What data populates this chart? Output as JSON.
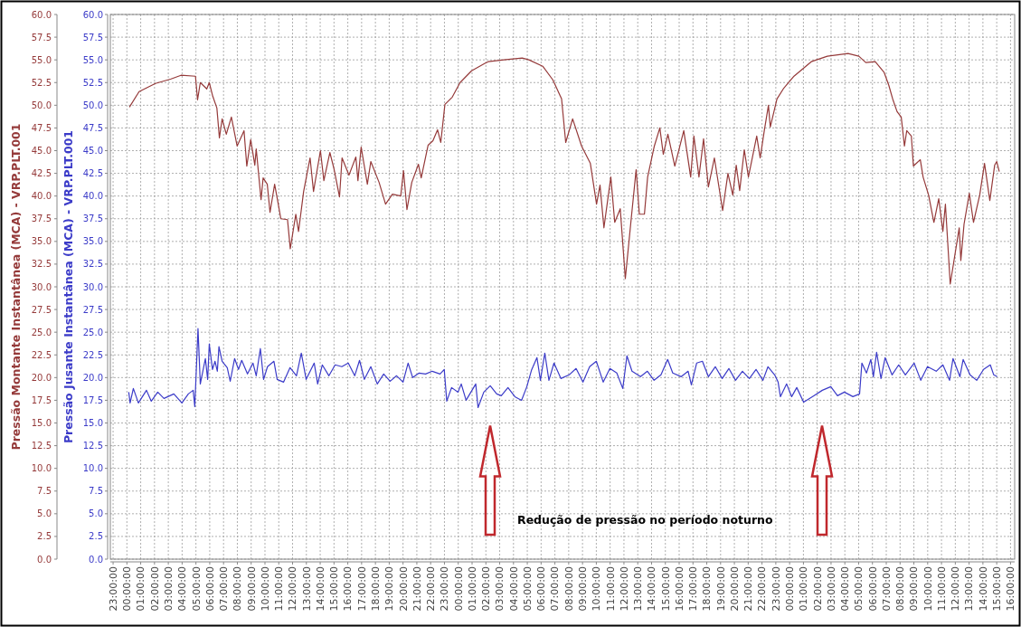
{
  "chart_data": {
    "type": "line",
    "ylabel": "Pressão Montante Instantânea (MCA) - VRP.PLT.001",
    "y2label": "Pressão Jusante Instantânea (MCA) - VRP.PLT.001",
    "annotations": [
      "Redução de pressão no período noturno"
    ],
    "xlim": [
      "2000-01-01T22:48",
      "2000-01-04T16:18"
    ],
    "ylim": [
      0,
      60
    ],
    "y2lim": [
      0,
      60
    ],
    "grid": true,
    "marker": "none",
    "line_style": "solid",
    "xticks": [
      {
        "value": "2000-01-01T23:00",
        "label": "23:00:00"
      },
      {
        "value": "2000-01-02T00:00",
        "label": "00:00:00"
      },
      {
        "value": "2000-01-02T01:00",
        "label": "01:00:00"
      },
      {
        "value": "2000-01-02T02:00",
        "label": "02:00:00"
      },
      {
        "value": "2000-01-02T03:00",
        "label": "03:00:00"
      },
      {
        "value": "2000-01-02T04:00",
        "label": "04:00:00"
      },
      {
        "value": "2000-01-02T05:00",
        "label": "05:00:00"
      },
      {
        "value": "2000-01-02T06:00",
        "label": "06:00:00"
      },
      {
        "value": "2000-01-02T07:00",
        "label": "07:00:00"
      },
      {
        "value": "2000-01-02T08:00",
        "label": "08:00:00"
      },
      {
        "value": "2000-01-02T09:00",
        "label": "09:00:00"
      },
      {
        "value": "2000-01-02T10:00",
        "label": "10:00:00"
      },
      {
        "value": "2000-01-02T11:00",
        "label": "11:00:00"
      },
      {
        "value": "2000-01-02T12:00",
        "label": "12:00:00"
      },
      {
        "value": "2000-01-02T13:00",
        "label": "13:00:00"
      },
      {
        "value": "2000-01-02T14:00",
        "label": "14:00:00"
      },
      {
        "value": "2000-01-02T15:00",
        "label": "15:00:00"
      },
      {
        "value": "2000-01-02T16:00",
        "label": "16:00:00"
      },
      {
        "value": "2000-01-02T17:00",
        "label": "17:00:00"
      },
      {
        "value": "2000-01-02T18:00",
        "label": "18:00:00"
      },
      {
        "value": "2000-01-02T19:00",
        "label": "19:00:00"
      },
      {
        "value": "2000-01-02T20:00",
        "label": "20:00:00"
      },
      {
        "value": "2000-01-02T21:00",
        "label": "21:00:00"
      },
      {
        "value": "2000-01-02T22:00",
        "label": "22:00:00"
      },
      {
        "value": "2000-01-02T23:00",
        "label": "23:00:00"
      },
      {
        "value": "2000-01-03T00:00",
        "label": "00:00:00"
      },
      {
        "value": "2000-01-03T01:00",
        "label": "01:00:00"
      },
      {
        "value": "2000-01-03T02:00",
        "label": "02:00:00"
      },
      {
        "value": "2000-01-03T03:00",
        "label": "03:00:00"
      },
      {
        "value": "2000-01-03T04:00",
        "label": "04:00:00"
      },
      {
        "value": "2000-01-03T05:00",
        "label": "05:00:00"
      },
      {
        "value": "2000-01-03T06:00",
        "label": "06:00:00"
      },
      {
        "value": "2000-01-03T07:00",
        "label": "07:00:00"
      },
      {
        "value": "2000-01-03T08:00",
        "label": "08:00:00"
      },
      {
        "value": "2000-01-03T09:00",
        "label": "09:00:00"
      },
      {
        "value": "2000-01-03T10:00",
        "label": "10:00:00"
      },
      {
        "value": "2000-01-03T11:00",
        "label": "11:00:00"
      },
      {
        "value": "2000-01-03T12:00",
        "label": "12:00:00"
      },
      {
        "value": "2000-01-03T13:00",
        "label": "13:00:00"
      },
      {
        "value": "2000-01-03T14:00",
        "label": "14:00:00"
      },
      {
        "value": "2000-01-03T15:00",
        "label": "15:00:00"
      },
      {
        "value": "2000-01-03T16:00",
        "label": "16:00:00"
      },
      {
        "value": "2000-01-03T17:00",
        "label": "17:00:00"
      },
      {
        "value": "2000-01-03T18:00",
        "label": "18:00:00"
      },
      {
        "value": "2000-01-03T19:00",
        "label": "19:00:00"
      },
      {
        "value": "2000-01-03T20:00",
        "label": "20:00:00"
      },
      {
        "value": "2000-01-03T21:00",
        "label": "21:00:00"
      },
      {
        "value": "2000-01-03T22:00",
        "label": "22:00:00"
      },
      {
        "value": "2000-01-03T23:00",
        "label": "23:00:00"
      },
      {
        "value": "2000-01-04T00:00",
        "label": "00:00:00"
      },
      {
        "value": "2000-01-04T01:00",
        "label": "01:00:00"
      },
      {
        "value": "2000-01-04T02:00",
        "label": "02:00:00"
      },
      {
        "value": "2000-01-04T03:00",
        "label": "03:00:00"
      },
      {
        "value": "2000-01-04T04:00",
        "label": "04:00:00"
      },
      {
        "value": "2000-01-04T05:00",
        "label": "05:00:00"
      },
      {
        "value": "2000-01-04T06:00",
        "label": "06:00:00"
      },
      {
        "value": "2000-01-04T07:00",
        "label": "07:00:00"
      },
      {
        "value": "2000-01-04T08:00",
        "label": "08:00:00"
      },
      {
        "value": "2000-01-04T09:00",
        "label": "09:00:00"
      },
      {
        "value": "2000-01-04T10:00",
        "label": "10:00:00"
      },
      {
        "value": "2000-01-04T11:00",
        "label": "11:00:00"
      },
      {
        "value": "2000-01-04T12:00",
        "label": "12:00:00"
      },
      {
        "value": "2000-01-04T13:00",
        "label": "13:00:00"
      },
      {
        "value": "2000-01-04T14:00",
        "label": "14:00:00"
      },
      {
        "value": "2000-01-04T15:00",
        "label": "15:00:00"
      },
      {
        "value": "2000-01-04T16:00",
        "label": "16:00:00"
      }
    ],
    "yticks": [
      {
        "value": 0,
        "label": "0.0"
      },
      {
        "value": 2.5,
        "label": "2.5"
      },
      {
        "value": 5,
        "label": "5.0"
      },
      {
        "value": 7.5,
        "label": "7.5"
      },
      {
        "value": 10,
        "label": "10.0"
      },
      {
        "value": 12.5,
        "label": "12.5"
      },
      {
        "value": 15,
        "label": "15.0"
      },
      {
        "value": 17.5,
        "label": "17.5"
      },
      {
        "value": 20,
        "label": "20.0"
      },
      {
        "value": 22.5,
        "label": "22.5"
      },
      {
        "value": 25,
        "label": "25.0"
      },
      {
        "value": 27.5,
        "label": "27.5"
      },
      {
        "value": 30,
        "label": "30.0"
      },
      {
        "value": 32.5,
        "label": "32.5"
      },
      {
        "value": 35,
        "label": "35.0"
      },
      {
        "value": 37.5,
        "label": "37.5"
      },
      {
        "value": 40,
        "label": "40.0"
      },
      {
        "value": 42.5,
        "label": "42.5"
      },
      {
        "value": 45,
        "label": "45.0"
      },
      {
        "value": 47.5,
        "label": "47.5"
      },
      {
        "value": 50,
        "label": "50.0"
      },
      {
        "value": 52.5,
        "label": "52.5"
      },
      {
        "value": 55,
        "label": "55.0"
      },
      {
        "value": 57.5,
        "label": "57.5"
      },
      {
        "value": 60,
        "label": "60.0"
      }
    ],
    "y2ticks": [
      {
        "value": 0,
        "label": "0.0"
      },
      {
        "value": 2.5,
        "label": "2.5"
      },
      {
        "value": 5,
        "label": "5.0"
      },
      {
        "value": 7.5,
        "label": "7.5"
      },
      {
        "value": 10,
        "label": "10.0"
      },
      {
        "value": 12.5,
        "label": "12.5"
      },
      {
        "value": 15,
        "label": "15.0"
      },
      {
        "value": 17.5,
        "label": "17.5"
      },
      {
        "value": 20,
        "label": "20.0"
      },
      {
        "value": 22.5,
        "label": "22.5"
      },
      {
        "value": 25,
        "label": "25.0"
      },
      {
        "value": 27.5,
        "label": "27.5"
      },
      {
        "value": 30,
        "label": "30.0"
      },
      {
        "value": 32.5,
        "label": "32.5"
      },
      {
        "value": 35,
        "label": "35.0"
      },
      {
        "value": 37.5,
        "label": "37.5"
      },
      {
        "value": 40,
        "label": "40.0"
      },
      {
        "value": 42.5,
        "label": "42.5"
      },
      {
        "value": 45,
        "label": "45.0"
      },
      {
        "value": 47.5,
        "label": "47.5"
      },
      {
        "value": 50,
        "label": "50.0"
      },
      {
        "value": 52.5,
        "label": "52.5"
      },
      {
        "value": 55,
        "label": "55.0"
      },
      {
        "value": 57.5,
        "label": "57.5"
      },
      {
        "value": 60,
        "label": "60.0"
      }
    ],
    "series": [
      {
        "color": "#953a3a",
        "axis": "y",
        "x": [
          "2000-01-02T00:11",
          "2000-01-02T00:53",
          "2000-01-02T02:04",
          "2000-01-02T03:12",
          "2000-01-02T03:55",
          "2000-01-02T04:58",
          "2000-01-02T05:07",
          "2000-01-02T05:19",
          "2000-01-02T05:47",
          "2000-01-02T05:58",
          "2000-01-02T06:13",
          "2000-01-02T06:31",
          "2000-01-02T06:42",
          "2000-01-02T06:54",
          "2000-01-02T07:12",
          "2000-01-02T07:34",
          "2000-01-02T07:59",
          "2000-01-02T08:29",
          "2000-01-02T08:41",
          "2000-01-02T08:58",
          "2000-01-02T09:16",
          "2000-01-02T09:22",
          "2000-01-02T09:43",
          "2000-01-02T09:52",
          "2000-01-02T10:10",
          "2000-01-02T10:22",
          "2000-01-02T10:42",
          "2000-01-02T10:55",
          "2000-01-02T11:09",
          "2000-01-02T11:38",
          "2000-01-02T11:50",
          "2000-01-02T12:14",
          "2000-01-02T12:26",
          "2000-01-02T12:48",
          "2000-01-02T13:16",
          "2000-01-02T13:31",
          "2000-01-02T14:01",
          "2000-01-02T14:16",
          "2000-01-02T14:42",
          "2000-01-02T15:00",
          "2000-01-02T15:24",
          "2000-01-02T15:35",
          "2000-01-02T16:05",
          "2000-01-02T16:35",
          "2000-01-02T16:44",
          "2000-01-02T16:58",
          "2000-01-02T17:25",
          "2000-01-02T17:40",
          "2000-01-02T18:16",
          "2000-01-02T18:44",
          "2000-01-02T19:14",
          "2000-01-02T19:50",
          "2000-01-02T20:02",
          "2000-01-02T20:17",
          "2000-01-02T20:38",
          "2000-01-02T21:07",
          "2000-01-02T21:19",
          "2000-01-02T21:49",
          "2000-01-02T22:10",
          "2000-01-02T22:30",
          "2000-01-02T22:44",
          "2000-01-02T23:02",
          "2000-01-02T23:34",
          "2000-01-03T00:08",
          "2000-01-03T00:58",
          "2000-01-03T01:54",
          "2000-01-03T02:10",
          "2000-01-03T03:18",
          "2000-01-03T04:38",
          "2000-01-03T05:07",
          "2000-01-03T06:07",
          "2000-01-03T06:51",
          "2000-01-03T07:29",
          "2000-01-03T07:47",
          "2000-01-03T08:17",
          "2000-01-03T08:56",
          "2000-01-03T09:34",
          "2000-01-03T10:01",
          "2000-01-03T10:16",
          "2000-01-03T10:33",
          "2000-01-03T11:03",
          "2000-01-03T11:20",
          "2000-01-03T11:44",
          "2000-01-03T12:06",
          "2000-01-03T12:32",
          "2000-01-03T12:53",
          "2000-01-03T13:07",
          "2000-01-03T13:29",
          "2000-01-03T13:43",
          "2000-01-03T14:12",
          "2000-01-03T14:36",
          "2000-01-03T14:51",
          "2000-01-03T15:11",
          "2000-01-03T15:41",
          "2000-01-03T16:20",
          "2000-01-03T16:50",
          "2000-01-03T17:04",
          "2000-01-03T17:26",
          "2000-01-03T17:46",
          "2000-01-03T18:07",
          "2000-01-03T18:33",
          "2000-01-03T19:09",
          "2000-01-03T19:32",
          "2000-01-03T19:53",
          "2000-01-03T20:08",
          "2000-01-03T20:23",
          "2000-01-03T20:43",
          "2000-01-03T21:01",
          "2000-01-03T21:37",
          "2000-01-03T21:52",
          "2000-01-03T22:10",
          "2000-01-03T22:28",
          "2000-01-03T22:36",
          "2000-01-03T23:05",
          "2000-01-03T23:35",
          "2000-01-04T00:19",
          "2000-01-04T01:34",
          "2000-01-04T02:44",
          "2000-01-04T04:14",
          "2000-01-04T05:01",
          "2000-01-04T05:31",
          "2000-01-04T06:12",
          "2000-01-04T06:51",
          "2000-01-04T07:11",
          "2000-01-04T07:29",
          "2000-01-04T07:47",
          "2000-01-04T08:05",
          "2000-01-04T08:19",
          "2000-01-04T08:29",
          "2000-01-04T08:49",
          "2000-01-04T08:58",
          "2000-01-04T09:28",
          "2000-01-04T09:40",
          "2000-01-04T10:04",
          "2000-01-04T10:27",
          "2000-01-04T10:48",
          "2000-01-04T11:06",
          "2000-01-04T11:17",
          "2000-01-04T11:38",
          "2000-01-04T12:17",
          "2000-01-04T12:24",
          "2000-01-04T12:38",
          "2000-01-04T13:01",
          "2000-01-04T13:19",
          "2000-01-04T13:46",
          "2000-01-04T14:07",
          "2000-01-04T14:30",
          "2000-01-04T14:51",
          "2000-01-04T15:00",
          "2000-01-04T15:11"
        ],
        "values": [
          49.8,
          51.5,
          52.4,
          52.9,
          53.3,
          53.2,
          50.6,
          52.5,
          51.8,
          52.5,
          51,
          49.7,
          46.4,
          48.5,
          46.8,
          48.7,
          45.5,
          47.2,
          43.3,
          46.2,
          43.4,
          45.2,
          39.6,
          42.0,
          41.3,
          38.2,
          41.3,
          39.5,
          37.5,
          37.4,
          34.2,
          38.0,
          36.1,
          40.5,
          44.2,
          40.5,
          45.0,
          41.7,
          44.8,
          43,
          39.9,
          44.2,
          42.3,
          44.3,
          41.7,
          45.4,
          41.3,
          43.8,
          41.5,
          39.1,
          40.2,
          40.0,
          42.8,
          38.5,
          41.5,
          43.5,
          42.0,
          45.6,
          46.1,
          47.3,
          45.9,
          50.1,
          50.9,
          52.5,
          53.8,
          54.6,
          54.8,
          55.0,
          55.2,
          55.0,
          54.3,
          52.8,
          50.7,
          45.9,
          48.5,
          45.5,
          43.6,
          39.1,
          41.2,
          36.5,
          42.1,
          37.1,
          38.6,
          30.9,
          37.6,
          42.9,
          38.0,
          38.0,
          42.1,
          45.5,
          47.5,
          44.6,
          46.8,
          43.3,
          47.2,
          42.1,
          46.6,
          42.1,
          46.3,
          41.0,
          44.2,
          38.4,
          42.5,
          40.1,
          43.4,
          40.6,
          45.1,
          42.1,
          46.6,
          44.2,
          47.2,
          50.0,
          47.6,
          50.7,
          51.9,
          53.2,
          54.8,
          55.4,
          55.7,
          55.4,
          54.7,
          54.8,
          53.6,
          52.2,
          50.6,
          49.3,
          48.7,
          45.5,
          47.2,
          46.6,
          43.3,
          44.0,
          42.1,
          40.1,
          37.1,
          39.7,
          36.1,
          39.1,
          30.3,
          36.5,
          32.9,
          36.9,
          40.3,
          37.1,
          40.1,
          43.6,
          39.5,
          43.4,
          43.8,
          42.7
        ]
      },
      {
        "color": "#3b3bc8",
        "axis": "y2",
        "x": [
          "2000-01-02T00:08",
          "2000-01-02T00:14",
          "2000-01-02T00:28",
          "2000-01-02T00:50",
          "2000-01-02T01:25",
          "2000-01-02T01:46",
          "2000-01-02T02:14",
          "2000-01-02T02:41",
          "2000-01-02T03:24",
          "2000-01-02T03:59",
          "2000-01-02T04:27",
          "2000-01-02T04:48",
          "2000-01-02T04:55",
          "2000-01-02T05:09",
          "2000-01-02T05:19",
          "2000-01-02T05:41",
          "2000-01-02T05:51",
          "2000-01-02T05:58",
          "2000-01-02T06:12",
          "2000-01-02T06:23",
          "2000-01-02T06:33",
          "2000-01-02T06:40",
          "2000-01-02T06:54",
          "2000-01-02T07:16",
          "2000-01-02T07:29",
          "2000-01-02T07:48",
          "2000-01-02T08:05",
          "2000-01-02T08:19",
          "2000-01-02T08:44",
          "2000-01-02T09:08",
          "2000-01-02T09:22",
          "2000-01-02T09:40",
          "2000-01-02T09:54",
          "2000-01-02T10:11",
          "2000-01-02T10:39",
          "2000-01-02T10:53",
          "2000-01-02T11:21",
          "2000-01-02T11:49",
          "2000-01-02T12:17",
          "2000-01-02T12:38",
          "2000-01-02T12:59",
          "2000-01-02T13:34",
          "2000-01-02T13:49",
          "2000-01-02T14:09",
          "2000-01-02T14:38",
          "2000-01-02T15:05",
          "2000-01-02T15:34",
          "2000-01-02T16:02",
          "2000-01-02T16:30",
          "2000-01-02T16:51",
          "2000-01-02T17:12",
          "2000-01-02T17:40",
          "2000-01-02T18:08",
          "2000-01-02T18:36",
          "2000-01-02T19:04",
          "2000-01-02T19:32",
          "2000-01-02T20:00",
          "2000-01-02T20:22",
          "2000-01-02T20:42",
          "2000-01-02T21:10",
          "2000-01-02T21:38",
          "2000-01-02T22:07",
          "2000-01-02T22:41",
          "2000-01-02T22:59",
          "2000-01-02T23:10",
          "2000-01-02T23:31",
          "2000-01-02T23:59",
          "2000-01-03T00:13",
          "2000-01-03T00:34",
          "2000-01-03T00:55",
          "2000-01-03T01:16",
          "2000-01-03T01:26",
          "2000-01-03T01:51",
          "2000-01-03T02:19",
          "2000-01-03T02:47",
          "2000-01-03T03:07",
          "2000-01-03T03:36",
          "2000-01-03T04:06",
          "2000-01-03T04:35",
          "2000-01-03T04:58",
          "2000-01-03T05:18",
          "2000-01-03T05:42",
          "2000-01-03T05:57",
          "2000-01-03T06:16",
          "2000-01-03T06:34",
          "2000-01-03T06:56",
          "2000-01-03T07:26",
          "2000-01-03T08:02",
          "2000-01-03T08:32",
          "2000-01-03T09:02",
          "2000-01-03T09:31",
          "2000-01-03T10:00",
          "2000-01-03T10:30",
          "2000-01-03T10:59",
          "2000-01-03T11:29",
          "2000-01-03T11:55",
          "2000-01-03T12:13",
          "2000-01-03T12:35",
          "2000-01-03T13:12",
          "2000-01-03T13:42",
          "2000-01-03T14:11",
          "2000-01-03T14:41",
          "2000-01-03T15:10",
          "2000-01-03T15:32",
          "2000-01-03T16:09",
          "2000-01-03T16:39",
          "2000-01-03T16:53",
          "2000-01-03T17:16",
          "2000-01-03T17:41",
          "2000-01-03T18:07",
          "2000-01-03T18:37",
          "2000-01-03T19:07",
          "2000-01-03T19:36",
          "2000-01-03T20:05",
          "2000-01-03T20:35",
          "2000-01-03T21:05",
          "2000-01-03T21:34",
          "2000-01-03T22:04",
          "2000-01-03T22:26",
          "2000-01-03T22:55",
          "2000-01-03T23:10",
          "2000-01-03T23:20",
          "2000-01-03T23:47",
          "2000-01-04T00:09",
          "2000-01-04T00:31",
          "2000-01-04T01:01",
          "2000-01-04T01:45",
          "2000-01-04T02:22",
          "2000-01-04T02:59",
          "2000-01-04T03:28",
          "2000-01-04T03:58",
          "2000-01-04T04:35",
          "2000-01-04T05:04",
          "2000-01-04T05:14",
          "2000-01-04T05:34",
          "2000-01-04T05:53",
          "2000-01-04T06:04",
          "2000-01-04T06:18",
          "2000-01-04T06:37",
          "2000-01-04T06:55",
          "2000-01-04T07:25",
          "2000-01-04T07:54",
          "2000-01-04T08:23",
          "2000-01-04T09:01",
          "2000-01-04T09:30",
          "2000-01-04T09:59",
          "2000-01-04T10:37",
          "2000-01-04T11:06",
          "2000-01-04T11:35",
          "2000-01-04T11:50",
          "2000-01-04T12:20",
          "2000-01-04T12:34",
          "2000-01-04T13:04",
          "2000-01-04T13:33",
          "2000-01-04T14:03",
          "2000-01-04T14:32",
          "2000-01-04T14:47",
          "2000-01-04T15:02"
        ],
        "values": [
          18.4,
          17.2,
          18.8,
          17.2,
          18.6,
          17.4,
          18.4,
          17.7,
          18.2,
          17.2,
          18.2,
          18.6,
          16.8,
          25.4,
          19.3,
          22.1,
          19.8,
          23.7,
          20.9,
          21.8,
          20.7,
          23.4,
          21.8,
          21.1,
          19.6,
          22.1,
          20.9,
          21.9,
          20.4,
          21.6,
          20.2,
          23.2,
          19.8,
          21.2,
          21.8,
          19.8,
          19.5,
          21.1,
          20.2,
          22.7,
          19.8,
          21.6,
          19.3,
          21.4,
          20.2,
          21.4,
          21.2,
          21.6,
          20.2,
          21.9,
          19.8,
          21.2,
          19.3,
          20.4,
          19.6,
          20.2,
          19.5,
          21.6,
          20.0,
          20.5,
          20.4,
          20.7,
          20.4,
          20.9,
          17.4,
          18.9,
          18.4,
          19.3,
          17.5,
          18.4,
          19.3,
          16.7,
          18.4,
          19.1,
          18.2,
          18.0,
          18.9,
          17.9,
          17.5,
          19.0,
          20.8,
          22.2,
          19.7,
          22.7,
          19.7,
          21.6,
          19.9,
          20.3,
          21.0,
          19.5,
          21.2,
          21.8,
          19.5,
          21.0,
          20.5,
          18.8,
          22.4,
          20.7,
          20.1,
          20.7,
          19.7,
          20.3,
          22.0,
          20.5,
          20.1,
          20.7,
          19.2,
          21.6,
          21.8,
          20.1,
          21.2,
          19.9,
          21.0,
          19.7,
          20.7,
          19.9,
          20.9,
          19.7,
          21.2,
          20.3,
          19.5,
          17.9,
          19.3,
          17.9,
          18.9,
          17.3,
          18.0,
          18.6,
          19.0,
          18.0,
          18.4,
          17.9,
          18.2,
          21.6,
          20.5,
          22.0,
          20.1,
          22.8,
          19.9,
          22.2,
          20.3,
          21.4,
          20.3,
          21.6,
          19.7,
          21.2,
          20.7,
          21.4,
          19.7,
          22.1,
          20.1,
          22.0,
          20.3,
          19.7,
          20.9,
          21.4,
          20.3,
          20.1
        ]
      }
    ]
  }
}
